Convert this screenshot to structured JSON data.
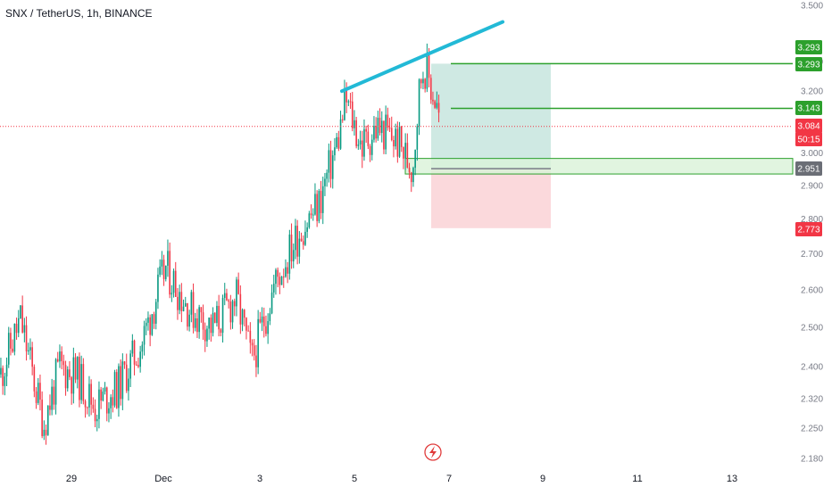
{
  "header": {
    "title": "SNX / TetherUS, 1h, BINANCE"
  },
  "colors": {
    "up": "#089981",
    "down": "#f23645",
    "trendline": "#22b9d6",
    "target_line": "#2ca02c",
    "profit_zone": "#cfe9e3",
    "loss_zone": "#fbd9dc",
    "entry_zone": "#d9f2d8",
    "current_price": "#f23645",
    "entry_tag": "#6b6e76"
  },
  "chart_data": {
    "type": "candlestick",
    "title": "SNX / TetherUS, 1h, BINANCE",
    "y_axis": {
      "scale": "log",
      "ticks": [
        "3.500",
        "3.300",
        "3.200",
        "3.000",
        "2.900",
        "2.800",
        "2.700",
        "2.600",
        "2.500",
        "2.400",
        "2.320",
        "2.250",
        "2.180"
      ],
      "range": [
        2.16,
        3.55
      ]
    },
    "x_axis": {
      "ticks": [
        "29",
        "Dec",
        "3",
        "5",
        "7",
        "9",
        "11",
        "13"
      ]
    },
    "price_path": [
      [
        "Nov 27 12:00",
        2.38
      ],
      [
        "Nov 27 22:00",
        2.52
      ],
      [
        "Nov 28 06:00",
        2.34
      ],
      [
        "Nov 28 10:00",
        2.26
      ],
      [
        "Nov 28 18:00",
        2.4
      ],
      [
        "Nov 29 04:00",
        2.37
      ],
      [
        "Nov 29 12:00",
        2.3
      ],
      [
        "Nov 30 00:00",
        2.35
      ],
      [
        "Nov 30 12:00",
        2.46
      ],
      [
        "Dec 1 00:00",
        2.66
      ],
      [
        "Dec 1 12:00",
        2.55
      ],
      [
        "Dec 2 00:00",
        2.5
      ],
      [
        "Dec 2 12:00",
        2.58
      ],
      [
        "Dec 2 20:00",
        2.41
      ],
      [
        "Dec 3 08:00",
        2.62
      ],
      [
        "Dec 3 20:00",
        2.76
      ],
      [
        "Dec 4 06:00",
        2.84
      ],
      [
        "Dec 4 16:00",
        3.04
      ],
      [
        "Dec 4 20:00",
        3.17
      ],
      [
        "Dec 5 04:00",
        3.02
      ],
      [
        "Dec 5 12:00",
        3.08
      ],
      [
        "Dec 5 22:00",
        3.04
      ],
      [
        "Dec 6 06:00",
        2.95
      ],
      [
        "Dec 6 10:00",
        3.24
      ],
      [
        "Dec 6 12:00",
        3.29
      ],
      [
        "Dec 6 18:00",
        3.16
      ],
      [
        "Dec 6 20:00",
        3.09
      ]
    ],
    "trendline": {
      "from": [
        "Dec 4 18:00",
        3.2
      ],
      "to": [
        "Dec 8 04:00",
        3.44
      ]
    },
    "position": {
      "entry": 2.951,
      "entry_upper": 2.966,
      "target_1": 3.143,
      "target_2": 3.293,
      "stop": 2.773
    },
    "price_tags": [
      {
        "label": "3.293",
        "kind": "target"
      },
      {
        "label": "3.293",
        "kind": "target"
      },
      {
        "label": "3.143",
        "kind": "target"
      },
      {
        "label": "3.084",
        "kind": "current"
      },
      {
        "label": "50:15",
        "kind": "countdown"
      },
      {
        "label": "2.951",
        "kind": "entry"
      },
      {
        "label": "2.773",
        "kind": "stop"
      }
    ],
    "current_price": 3.084
  }
}
